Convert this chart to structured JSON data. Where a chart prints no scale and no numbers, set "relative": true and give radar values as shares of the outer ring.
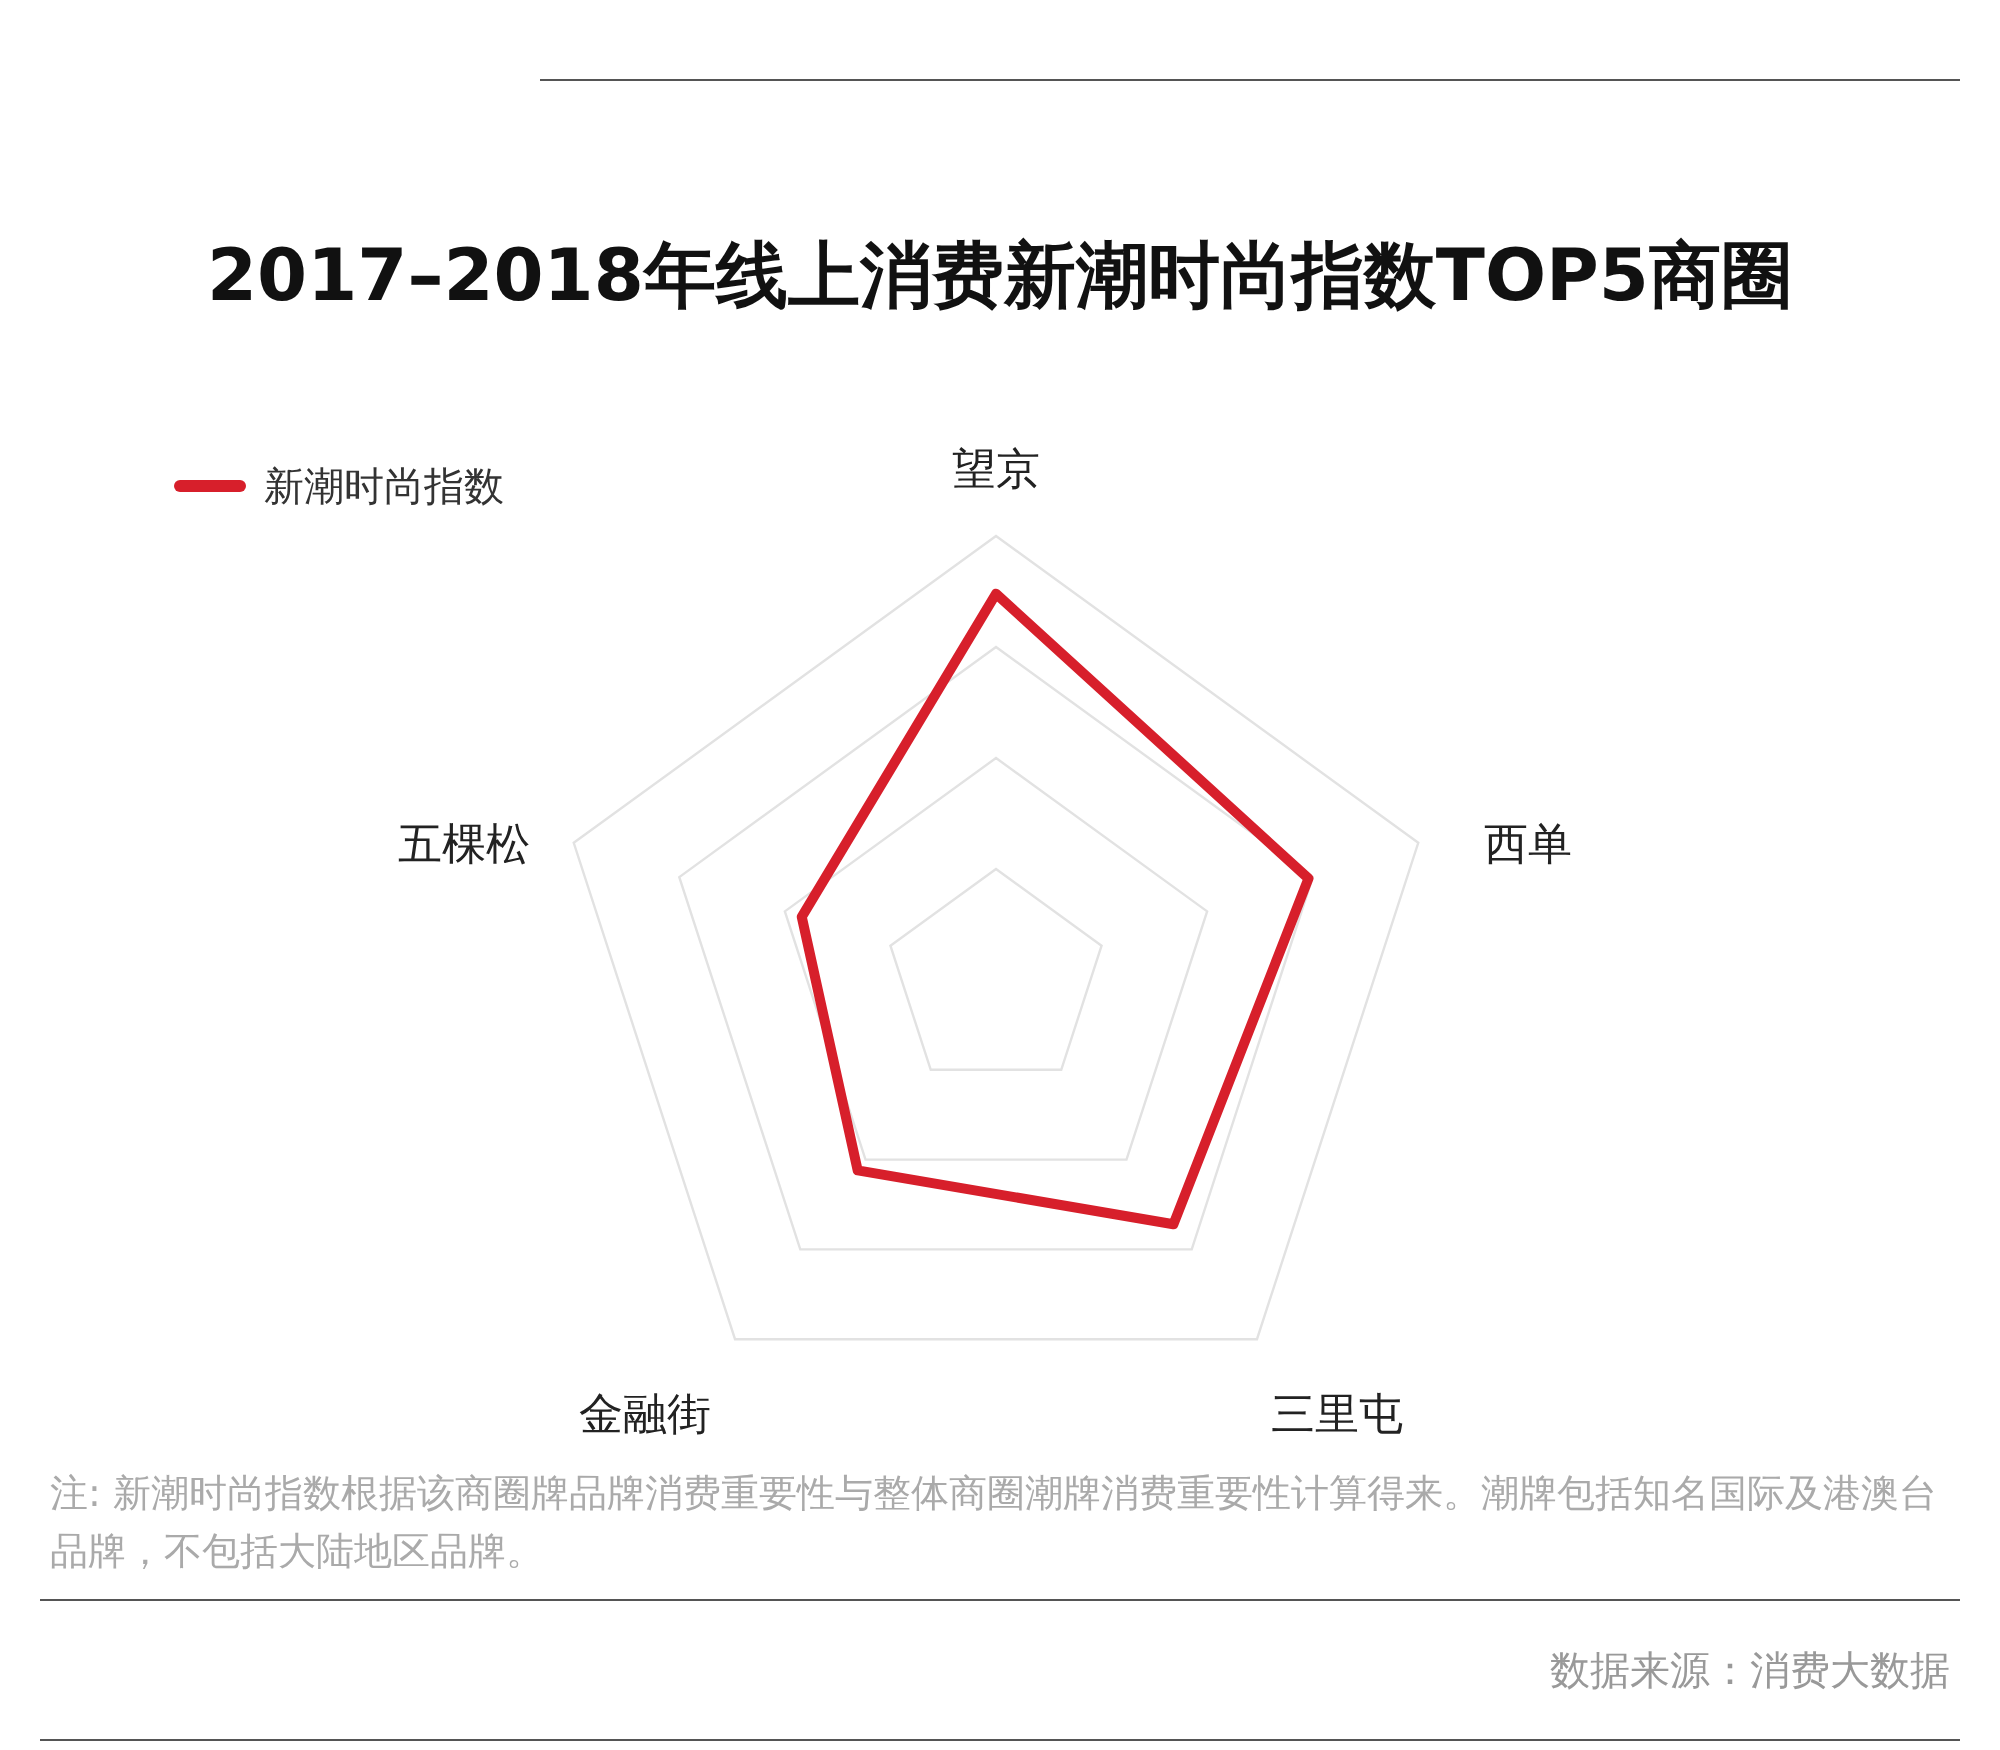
{
  "chart_data": {
    "type": "radar",
    "title": "2017–2018年线上消费新潮时尚指数TOP5商圈",
    "categories": [
      "望京",
      "西单",
      "三里屯",
      "金融街",
      "五棵松"
    ],
    "relative": true,
    "grid": true,
    "legend": "top left",
    "series": [
      {
        "name": "新潮时尚指数",
        "color": "#d71f2b",
        "values": [
          0.87,
          0.74,
          0.68,
          0.53,
          0.46
        ]
      }
    ],
    "annotations": [
      "注: 新潮时尚指数根据该商圈牌品牌消费重要性与整体商圈潮牌消费重要性计算得来。潮牌包括知名国际及港澳台品牌，不包括大陆地区品牌。",
      "数据来源：消费大数据"
    ]
  }
}
